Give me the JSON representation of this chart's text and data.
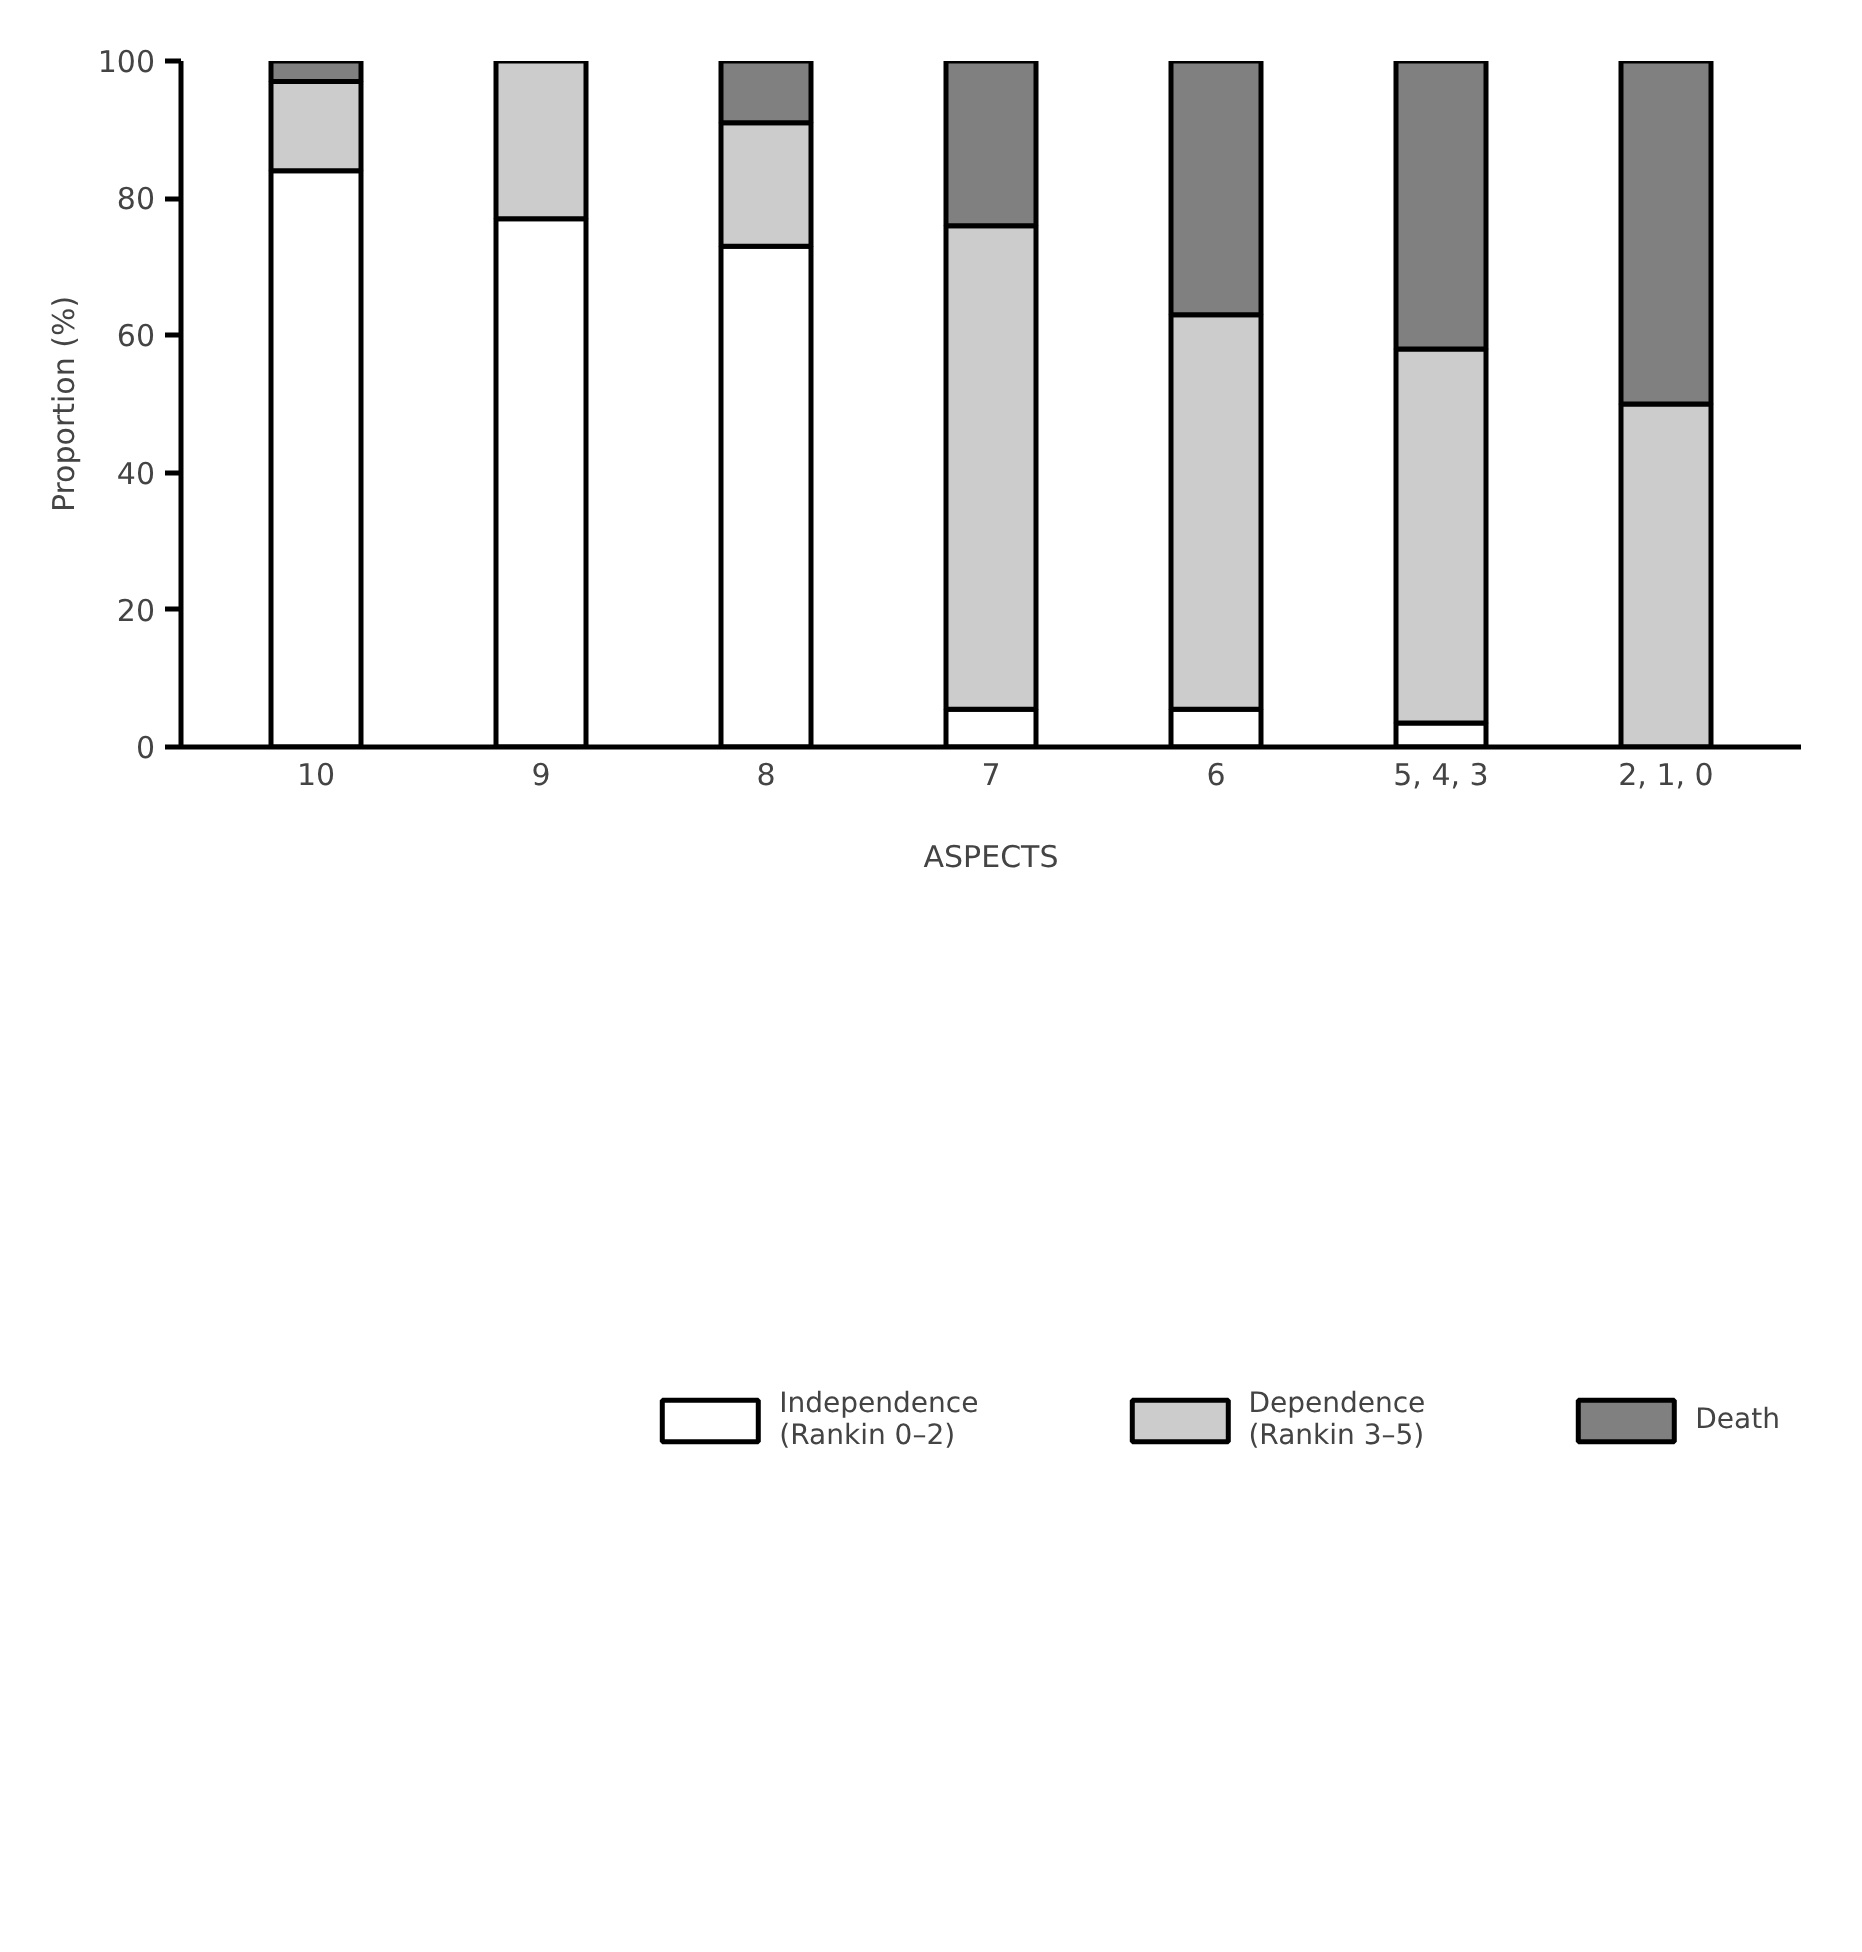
{
  "chart_data": {
    "type": "bar",
    "stacked": true,
    "xlabel": "ASPECTS",
    "ylabel": "Proportion (%)",
    "categories": [
      "10",
      "9",
      "8",
      "7",
      "6",
      "5, 4, 3",
      "2, 1, 0"
    ],
    "series": [
      {
        "name": "Independence\n(Rankin 0–2)",
        "color": "#ffffff",
        "values": [
          84,
          77,
          73,
          5.5,
          5.5,
          3.5,
          0
        ]
      },
      {
        "name": "Dependence\n(Rankin 3–5)",
        "color": "#cccccc",
        "values": [
          13,
          23,
          18,
          70.5,
          57.5,
          54.5,
          50
        ]
      },
      {
        "name": "Death",
        "color": "#808080",
        "values": [
          3,
          0,
          9,
          24,
          37,
          42,
          50
        ]
      }
    ],
    "ylim": [
      0,
      100
    ],
    "yticks": [
      0,
      20,
      40,
      60,
      80,
      100
    ],
    "grid": false,
    "legend": "bottom"
  }
}
